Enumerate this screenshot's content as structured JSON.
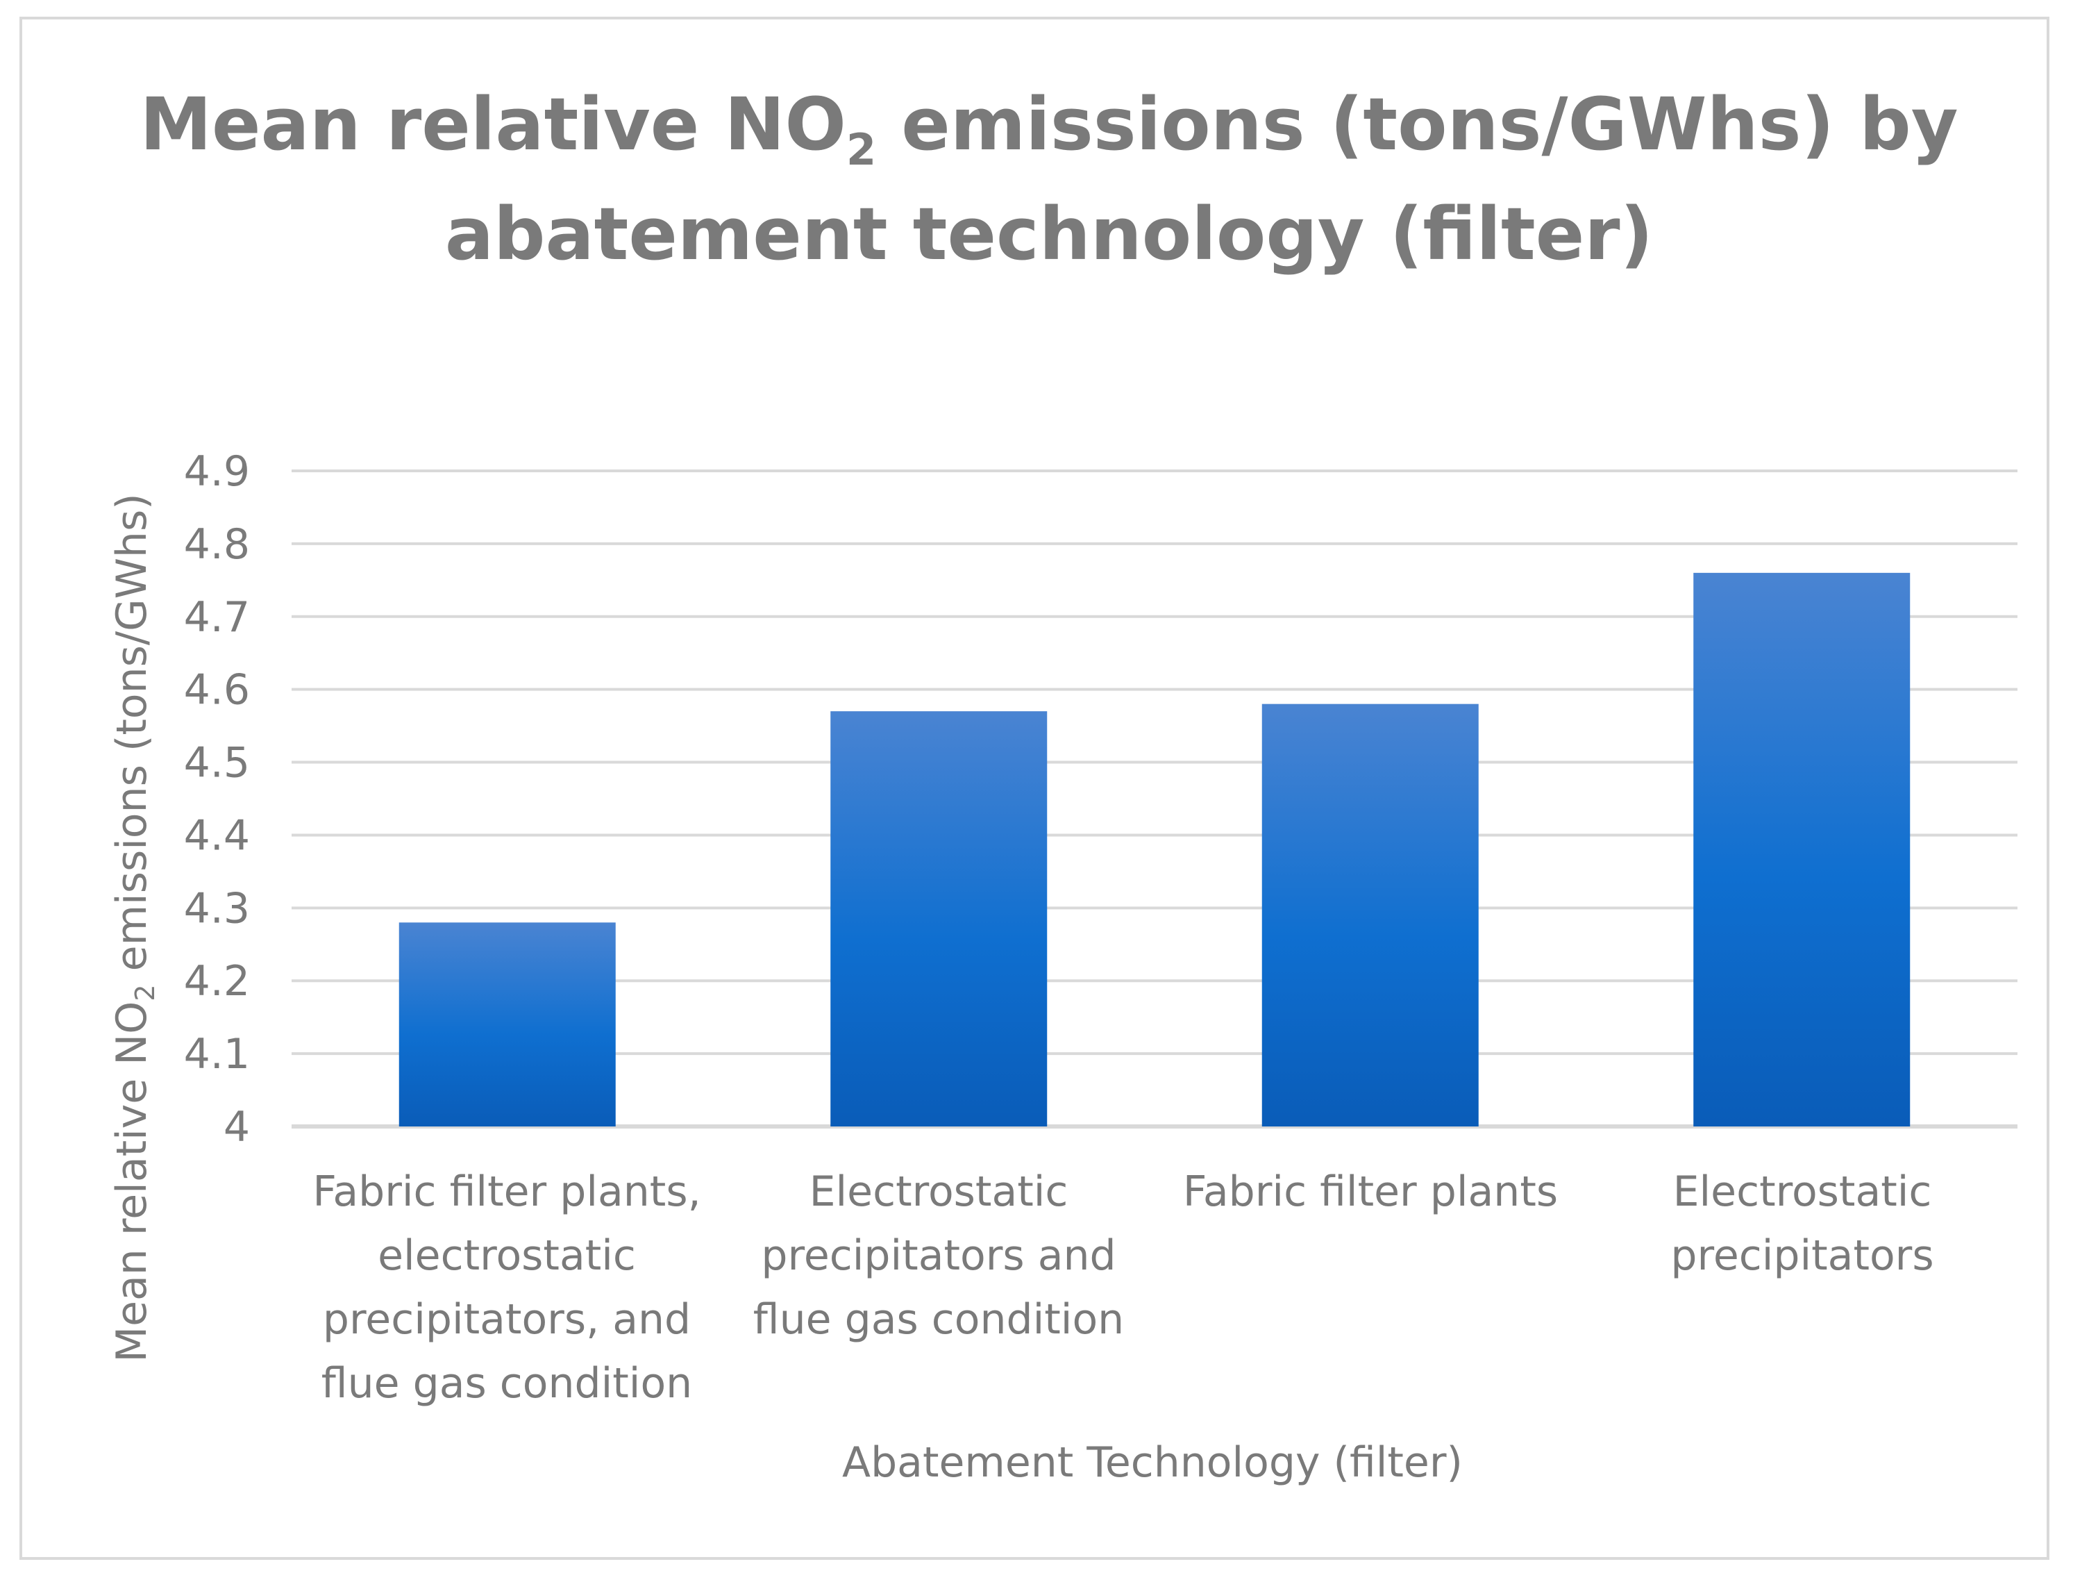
{
  "chart_data": {
    "type": "bar",
    "title_parts": {
      "before": "Mean relative NO",
      "subscript": "2",
      "after": " emissions (tons/GWhs) by abatement technology (filter)"
    },
    "ylabel_parts": {
      "before": "Mean relative NO",
      "subscript": "2",
      "after": " emissions (tons/GWhs)"
    },
    "xlabel": "Abatement Technology (filter)",
    "categories": [
      "Fabric filter plants, electrostatic precipitators, and flue gas condition",
      "Electrostatic precipitators and flue gas condition",
      "Fabric filter plants",
      "Electrostatic precipitators"
    ],
    "values": [
      4.28,
      4.57,
      4.58,
      4.76
    ],
    "ylim": [
      4,
      4.9
    ],
    "yticks": [
      "4",
      "4.1",
      "4.2",
      "4.3",
      "4.4",
      "4.5",
      "4.6",
      "4.7",
      "4.8",
      "4.9"
    ],
    "grid": true,
    "bar_color_top": "#4a84d2",
    "bar_color_mid": "#0f6fd0",
    "bar_color_bottom": "#0a5cb8",
    "text_color": "#7a7a7a",
    "grid_color": "#d9d9d9"
  }
}
